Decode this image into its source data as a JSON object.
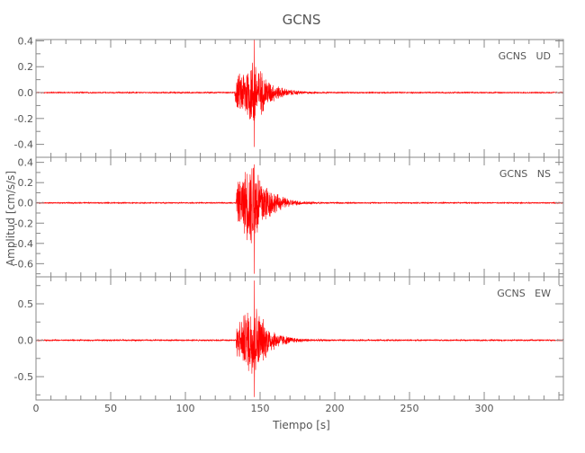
{
  "chart_data": {
    "type": "line",
    "title": "GCNS",
    "xlabel": "Tiempo [s]",
    "ylabel": "Amplitud [cm/s/s]",
    "xlim": [
      0,
      353
    ],
    "x_ticks": [
      0,
      50,
      100,
      150,
      200,
      250,
      300
    ],
    "grid": false,
    "line_color": "#ff0000",
    "axis_color": "#888888",
    "panels": [
      {
        "name": "GCNS   UD",
        "ylim": [
          -0.5,
          0.41
        ],
        "y_ticks": [
          0.4,
          0.2,
          0.0,
          -0.2,
          -0.4
        ],
        "y_tick_labels": [
          "0.4",
          "0.2",
          "0.0",
          "-0.2",
          "-0.4"
        ],
        "y_minor": 0.1,
        "onset_s": 133,
        "peak_s": 146,
        "max": 0.41,
        "min": -0.42,
        "coda_end_s": 190,
        "noise": 0.005
      },
      {
        "name": "GCNS   NS",
        "ylim": [
          -0.73,
          0.45
        ],
        "y_ticks": [
          0.4,
          0.2,
          0.0,
          -0.2,
          -0.4,
          -0.6
        ],
        "y_tick_labels": [
          "0.4",
          "0.2",
          "0.0",
          "-0.2",
          "-0.4",
          "-0.6"
        ],
        "y_minor": 0.1,
        "onset_s": 134,
        "peak_s": 146,
        "max": 0.38,
        "min": -0.7,
        "coda_end_s": 190,
        "noise": 0.006
      },
      {
        "name": "GCNS   EW",
        "ylim": [
          -0.82,
          0.87
        ],
        "y_ticks": [
          0.5,
          0.0,
          -0.5
        ],
        "y_tick_labels": [
          "0.5",
          "0.0",
          "-0.5"
        ],
        "y_minor": 0.25,
        "onset_s": 134,
        "peak_s": 146,
        "max": 0.82,
        "min": -0.78,
        "coda_end_s": 190,
        "noise": 0.01
      }
    ]
  }
}
